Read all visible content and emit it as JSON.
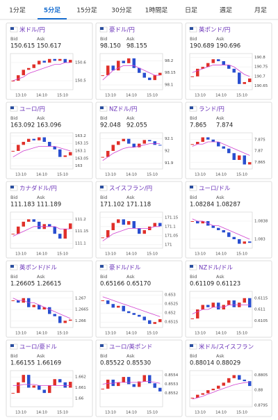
{
  "tabs": [
    "1分足",
    "5分足",
    "15分足",
    "30分足",
    "1時間足",
    "日足",
    "週足",
    "月足"
  ],
  "active_tab": 1,
  "bid_label": "Bid",
  "ask_label": "Ask",
  "xlabels": [
    "13:10",
    "14:10",
    "15:10"
  ],
  "cards": [
    {
      "title": "米ドル/円",
      "bid": "150.615",
      "ask": "150.617",
      "chart": {
        "type": "candlestick",
        "ylim": [
          150.45,
          150.65
        ],
        "yticks": [
          150.5,
          150.6
        ],
        "close": [
          150.5,
          150.53,
          150.56,
          150.57,
          150.59,
          150.61,
          150.6,
          150.62,
          150.61,
          150.62,
          150.6,
          150.615
        ],
        "ma": [
          150.5,
          150.51,
          150.52,
          150.54,
          150.55,
          150.56,
          150.57,
          150.58,
          150.59,
          150.59,
          150.6,
          150.6
        ]
      }
    },
    {
      "title": "豪ドル/円",
      "bid": "98.150",
      "ask": "98.155",
      "chart": {
        "type": "candlestick",
        "ylim": [
          98.08,
          98.23
        ],
        "yticks": [
          98.1,
          98.15,
          98.2
        ],
        "close": [
          98.14,
          98.18,
          98.16,
          98.2,
          98.19,
          98.21,
          98.17,
          98.15,
          98.13,
          98.12,
          98.14,
          98.15
        ],
        "ma": [
          98.12,
          98.14,
          98.16,
          98.17,
          98.18,
          98.18,
          98.18,
          98.17,
          98.16,
          98.15,
          98.14,
          98.14
        ]
      }
    },
    {
      "title": "英ポンド/円",
      "bid": "190.689",
      "ask": "190.696",
      "chart": {
        "type": "candlestick",
        "ylim": [
          190.63,
          190.82
        ],
        "yticks": [
          190.65,
          190.7,
          190.75,
          190.8
        ],
        "close": [
          190.7,
          190.74,
          190.75,
          190.77,
          190.79,
          190.78,
          190.76,
          190.74,
          190.72,
          190.66,
          190.67,
          190.689
        ],
        "ma": [
          190.72,
          190.73,
          190.74,
          190.75,
          190.76,
          190.76,
          190.76,
          190.76,
          190.75,
          190.73,
          190.71,
          190.7
        ]
      }
    },
    {
      "title": "ユーロ/円",
      "bid": "163.092",
      "ask": "163.096",
      "chart": {
        "type": "candlestick",
        "ylim": [
          162.98,
          163.22
        ],
        "yticks": [
          163,
          163.05,
          163.1,
          163.15,
          163.2
        ],
        "close": [
          163.1,
          163.14,
          163.16,
          163.18,
          163.17,
          163.19,
          163.16,
          163.13,
          163.11,
          163.06,
          163.07,
          163.092
        ],
        "ma": [
          163.06,
          163.08,
          163.1,
          163.11,
          163.12,
          163.13,
          163.13,
          163.13,
          163.13,
          163.12,
          163.11,
          163.1
        ]
      }
    },
    {
      "title": "NZドル/円",
      "bid": "92.048",
      "ask": "92.055",
      "chart": {
        "type": "candlestick",
        "ylim": [
          91.85,
          92.15
        ],
        "yticks": [
          91.9,
          92,
          92.1
        ],
        "close": [
          91.95,
          92.0,
          92.05,
          92.08,
          92.1,
          92.06,
          92.03,
          92.06,
          92.09,
          92.08,
          92.05,
          92.048
        ],
        "ma": [
          91.92,
          91.95,
          91.98,
          92.0,
          92.02,
          92.03,
          92.03,
          92.04,
          92.05,
          92.06,
          92.06,
          92.06
        ]
      }
    },
    {
      "title": "ランド/円",
      "bid": "7.865",
      "ask": "7.874",
      "chart": {
        "type": "candlestick",
        "ylim": [
          7.862,
          7.878
        ],
        "yticks": [
          7.865,
          7.87,
          7.875
        ],
        "close": [
          7.873,
          7.874,
          7.876,
          7.875,
          7.874,
          7.872,
          7.871,
          7.869,
          7.866,
          7.868,
          7.864,
          7.865
        ],
        "ma": [
          7.872,
          7.873,
          7.873,
          7.874,
          7.874,
          7.874,
          7.873,
          7.872,
          7.871,
          7.87,
          7.869,
          7.868
        ]
      }
    },
    {
      "title": "カナダドル/円",
      "bid": "111.183",
      "ask": "111.189",
      "chart": {
        "type": "candlestick",
        "ylim": [
          111.08,
          111.23
        ],
        "yticks": [
          111.1,
          111.15,
          111.2
        ],
        "close": [
          111.14,
          111.17,
          111.19,
          111.2,
          111.19,
          111.16,
          111.18,
          111.17,
          111.14,
          111.12,
          111.16,
          111.183
        ],
        "ma": [
          111.13,
          111.14,
          111.15,
          111.16,
          111.17,
          111.17,
          111.17,
          111.17,
          111.17,
          111.16,
          111.16,
          111.16
        ]
      }
    },
    {
      "title": "スイスフラン/円",
      "bid": "171.102",
      "ask": "171.118",
      "chart": {
        "type": "candlestick",
        "ylim": [
          170.98,
          171.18
        ],
        "yticks": [
          171,
          171.05,
          171.1,
          171.15
        ],
        "close": [
          171.04,
          171.08,
          171.12,
          171.14,
          171.11,
          171.13,
          171.09,
          171.06,
          171.08,
          171.1,
          171.12,
          171.102
        ],
        "ma": [
          171.02,
          171.04,
          171.06,
          171.07,
          171.08,
          171.09,
          171.09,
          171.09,
          171.09,
          171.09,
          171.1,
          171.1
        ]
      }
    },
    {
      "title": "ユーロ/ドル",
      "bid": "1.08284",
      "ask": "1.08287",
      "chart": {
        "type": "candlestick",
        "ylim": [
          1.0826,
          1.0842
        ],
        "yticks": [
          1.083,
          1.0838
        ],
        "close": [
          1.0838,
          1.0837,
          1.0838,
          1.0836,
          1.0835,
          1.0834,
          1.0833,
          1.0831,
          1.083,
          1.0828,
          1.0829,
          1.08284
        ],
        "ma": [
          1.0839,
          1.0838,
          1.0838,
          1.0837,
          1.0836,
          1.0836,
          1.0835,
          1.0834,
          1.0833,
          1.0832,
          1.0831,
          1.083
        ]
      }
    },
    {
      "title": "英ポンド/ドル",
      "bid": "1.26605",
      "ask": "1.26615",
      "chart": {
        "type": "candlestick",
        "ylim": [
          1.2657,
          1.2673
        ],
        "yticks": [
          1.266,
          1.2665,
          1.267
        ],
        "close": [
          1.2669,
          1.2668,
          1.267,
          1.2666,
          1.2667,
          1.2665,
          1.2666,
          1.2663,
          1.2662,
          1.2659,
          1.266,
          1.26605
        ],
        "ma": [
          1.267,
          1.2669,
          1.2669,
          1.2668,
          1.2668,
          1.2667,
          1.2666,
          1.2665,
          1.2664,
          1.2663,
          1.2662,
          1.2661
        ]
      }
    },
    {
      "title": "豪ドル/ドル",
      "bid": "0.65166",
      "ask": "0.65170",
      "chart": {
        "type": "candlestick",
        "ylim": [
          0.6512,
          0.6532
        ],
        "yticks": [
          0.6515,
          0.652,
          0.6525,
          0.653
        ],
        "close": [
          0.6527,
          0.6525,
          0.6523,
          0.6524,
          0.6521,
          0.652,
          0.6519,
          0.6518,
          0.6516,
          0.6514,
          0.6515,
          0.65166
        ],
        "ma": [
          0.6529,
          0.6528,
          0.6527,
          0.6526,
          0.6525,
          0.6524,
          0.6523,
          0.6522,
          0.6521,
          0.652,
          0.6519,
          0.6518
        ]
      }
    },
    {
      "title": "NZドル/ドル",
      "bid": "0.61109",
      "ask": "0.61123",
      "chart": {
        "type": "candlestick",
        "ylim": [
          0.6102,
          0.6118
        ],
        "yticks": [
          0.6105,
          0.611,
          0.6115
        ],
        "close": [
          0.6106,
          0.611,
          0.6112,
          0.6111,
          0.6113,
          0.611,
          0.6112,
          0.6114,
          0.6111,
          0.6113,
          0.6115,
          0.61109
        ],
        "ma": [
          0.6108,
          0.6109,
          0.611,
          0.611,
          0.6111,
          0.6111,
          0.6111,
          0.6112,
          0.6112,
          0.6112,
          0.6112,
          0.6112
        ]
      }
    },
    {
      "title": "ユーロ/豪ドル",
      "bid": "1.66155",
      "ask": "1.66169",
      "chart": {
        "type": "candlestick",
        "ylim": [
          1.6592,
          1.6626
        ],
        "yticks": [
          1.66,
          1.661,
          1.662
        ],
        "close": [
          1.6605,
          1.6615,
          1.6622,
          1.661,
          1.6612,
          1.6608,
          1.6605,
          1.6612,
          1.6618,
          1.6615,
          1.661,
          1.66155
        ],
        "ma": [
          1.6612,
          1.6612,
          1.6613,
          1.6613,
          1.6613,
          1.6612,
          1.6612,
          1.6612,
          1.6612,
          1.6612,
          1.6612,
          1.6612
        ]
      }
    },
    {
      "title": "ユーロ/英ポンド",
      "bid": "0.85522",
      "ask": "0.85530",
      "chart": {
        "type": "candlestick",
        "ylim": [
          0.85505,
          0.85545
        ],
        "yticks": [
          0.8552,
          0.8553,
          0.8554
        ],
        "close": [
          0.85525,
          0.85535,
          0.85528,
          0.85532,
          0.85538,
          0.8553,
          0.85527,
          0.85533,
          0.8554,
          0.85531,
          0.85526,
          0.85522
        ],
        "ma": [
          0.8553,
          0.85531,
          0.85531,
          0.85532,
          0.85532,
          0.85532,
          0.85532,
          0.85532,
          0.85533,
          0.85533,
          0.85532,
          0.85531
        ]
      }
    },
    {
      "title": "米ドル/スイスフラン",
      "bid": "0.88014",
      "ask": "0.88029",
      "chart": {
        "type": "candlestick",
        "ylim": [
          0.87945,
          0.88065
        ],
        "yticks": [
          0.8795,
          0.88,
          0.8805
        ],
        "close": [
          0.87975,
          0.87985,
          0.8799,
          0.88,
          0.88005,
          0.88015,
          0.88025,
          0.8804,
          0.8805,
          0.88035,
          0.8803,
          0.88014
        ],
        "ma": [
          0.8797,
          0.87975,
          0.8798,
          0.87987,
          0.87993,
          0.88,
          0.88006,
          0.88012,
          0.88018,
          0.88022,
          0.88025,
          0.88027
        ]
      }
    }
  ]
}
